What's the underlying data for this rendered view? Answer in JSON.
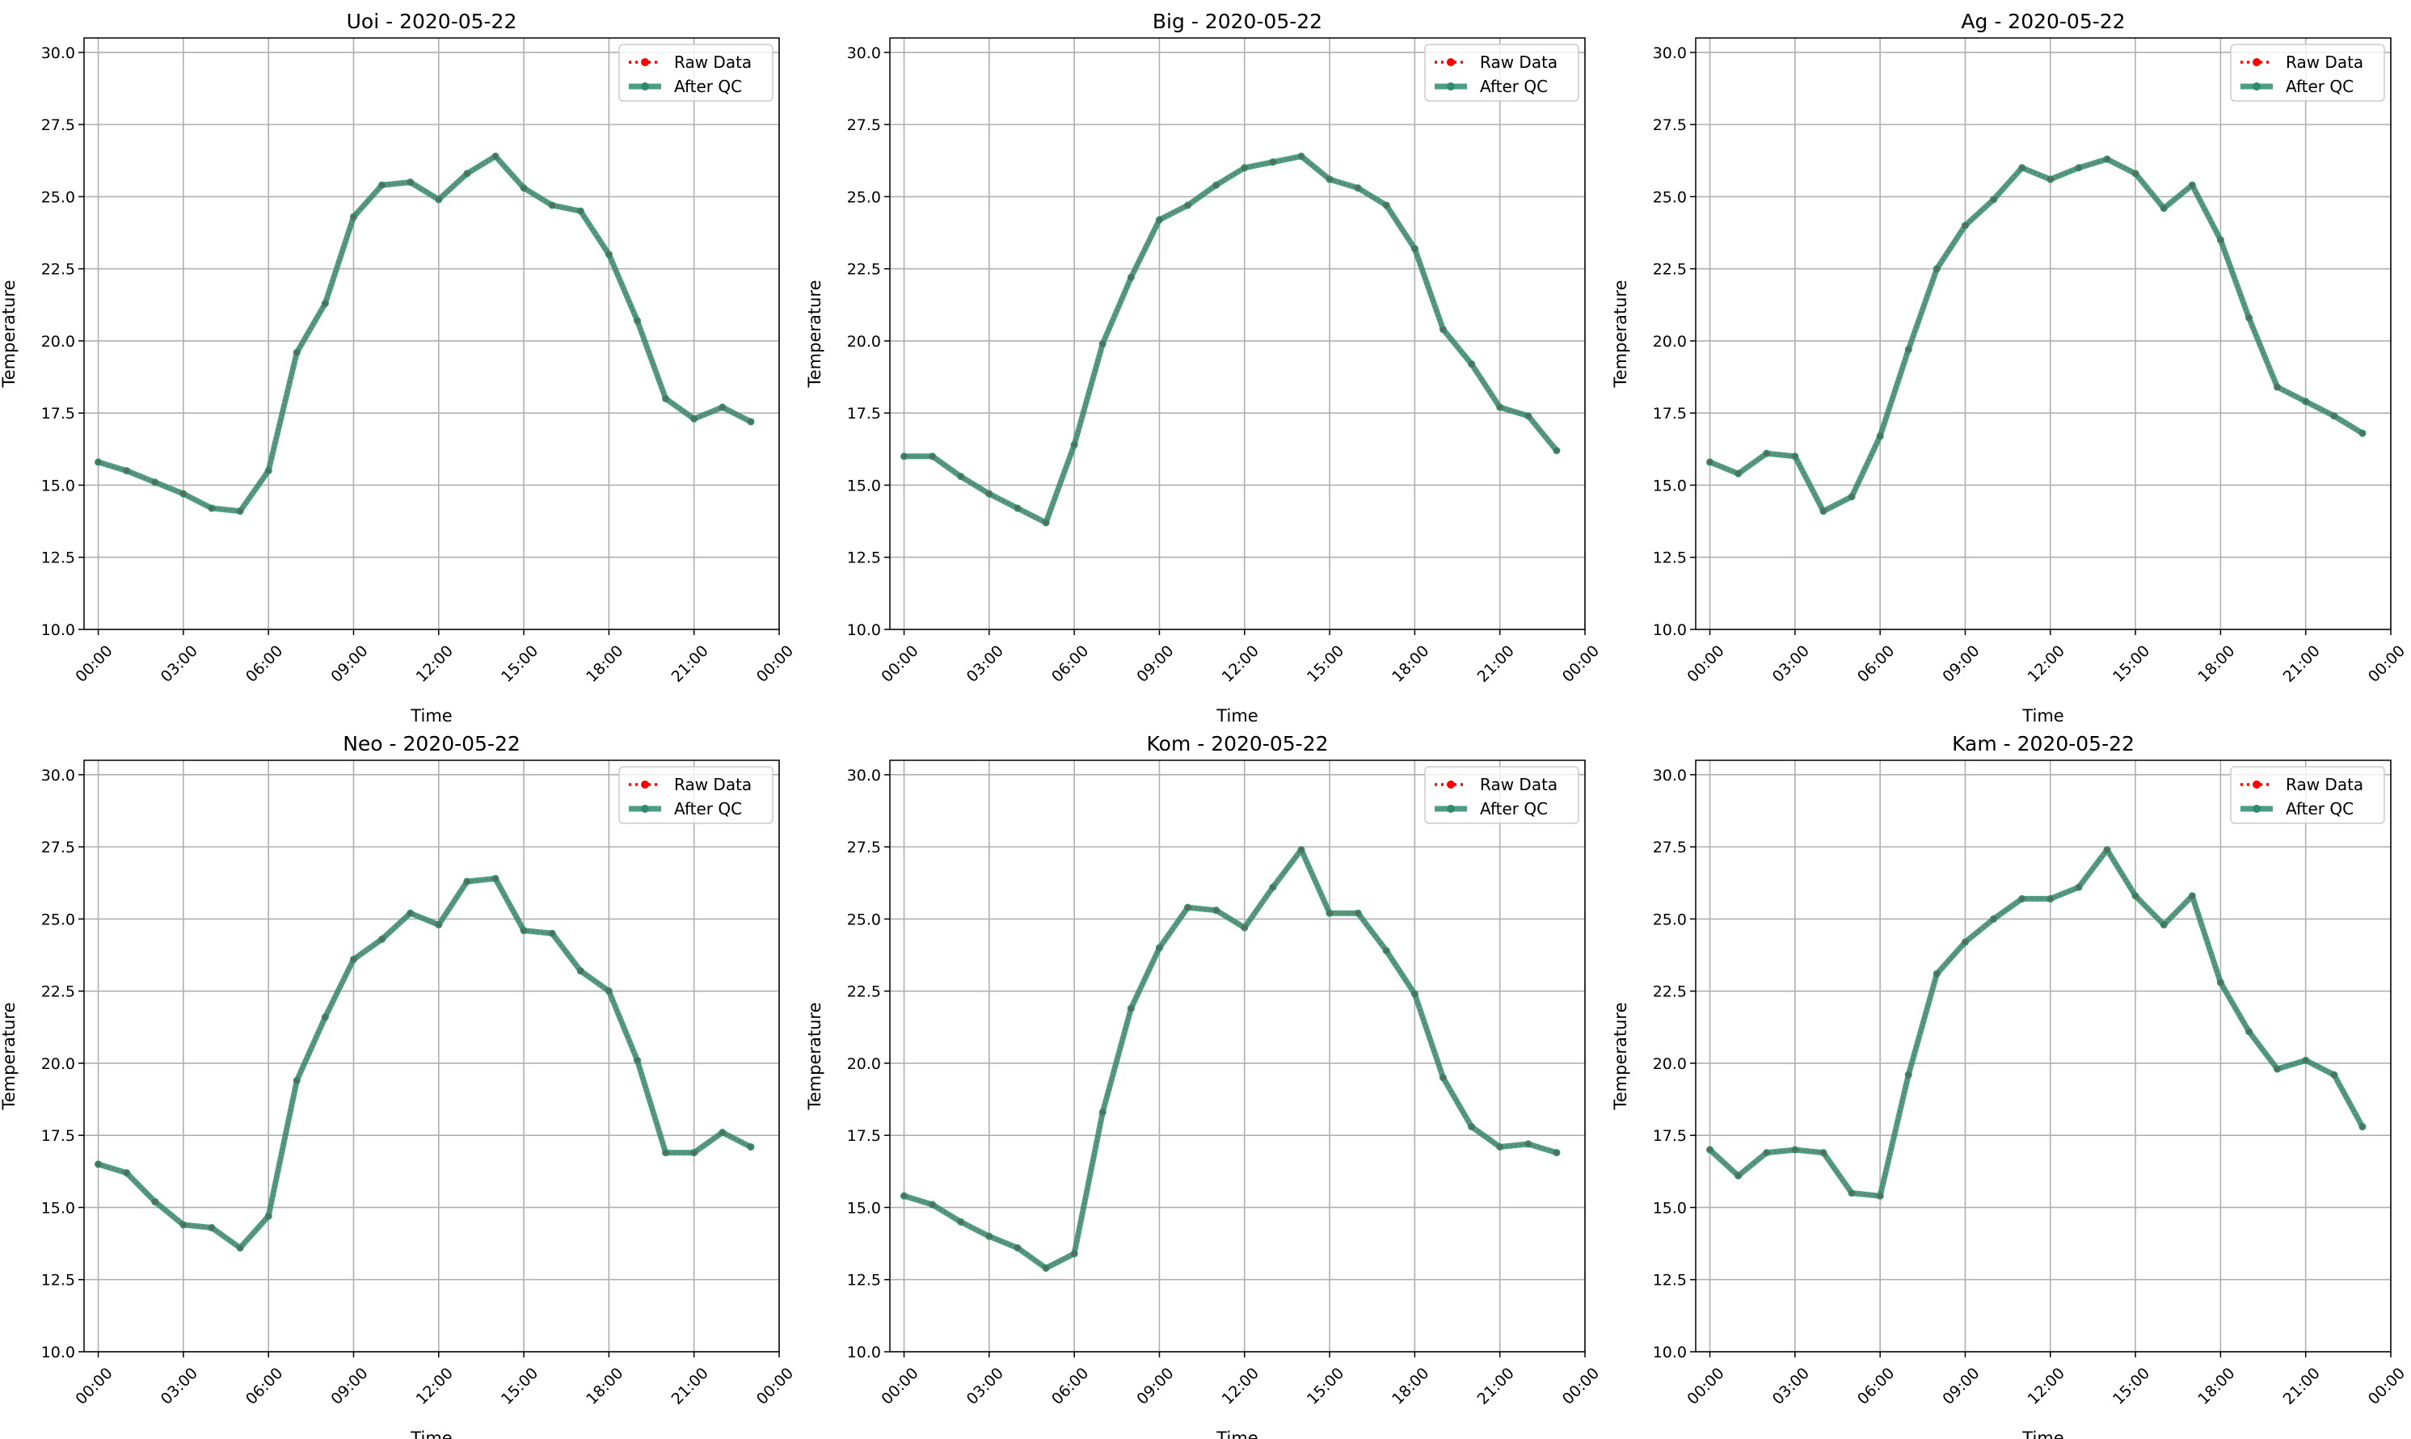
{
  "legend": {
    "raw_label": "Raw Data",
    "qc_label": "After QC"
  },
  "colors": {
    "raw": "#ff0000",
    "qc": "#2e8b6e",
    "grid": "#b0b0b0",
    "axes": "#000000"
  },
  "chart_data": [
    {
      "type": "line",
      "title": "Uoi - 2020-05-22",
      "xlabel": "Time",
      "ylabel": "Temperature",
      "xlim_hours": [
        -0.5,
        24.0
      ],
      "ylim": [
        10.0,
        30.5
      ],
      "x_ticks": [
        "00:00",
        "03:00",
        "06:00",
        "09:00",
        "12:00",
        "15:00",
        "18:00",
        "21:00",
        "00:00"
      ],
      "y_ticks": [
        "10.0",
        "12.5",
        "15.0",
        "17.5",
        "20.0",
        "22.5",
        "25.0",
        "27.5",
        "30.0"
      ],
      "grid": true,
      "legend_position": "top-right",
      "x": [
        "00:00",
        "01:00",
        "02:00",
        "03:00",
        "04:00",
        "05:00",
        "06:00",
        "07:00",
        "08:00",
        "09:00",
        "10:00",
        "11:00",
        "12:00",
        "13:00",
        "14:00",
        "15:00",
        "16:00",
        "17:00",
        "18:00",
        "19:00",
        "20:00",
        "21:00",
        "22:00",
        "23:00"
      ],
      "series": [
        {
          "name": "Raw Data",
          "values": [
            15.8,
            15.5,
            15.1,
            14.7,
            14.2,
            14.1,
            15.5,
            19.6,
            21.3,
            24.3,
            25.4,
            25.5,
            24.9,
            25.8,
            26.4,
            25.3,
            24.7,
            24.5,
            23.0,
            20.7,
            18.0,
            17.3,
            17.7,
            17.2
          ]
        },
        {
          "name": "After QC",
          "values": [
            15.8,
            15.5,
            15.1,
            14.7,
            14.2,
            14.1,
            15.5,
            19.6,
            21.3,
            24.3,
            25.4,
            25.5,
            24.9,
            25.8,
            26.4,
            25.3,
            24.7,
            24.5,
            23.0,
            20.7,
            18.0,
            17.3,
            17.7,
            17.2
          ]
        }
      ]
    },
    {
      "type": "line",
      "title": "Big - 2020-05-22",
      "xlabel": "Time",
      "ylabel": "Temperature",
      "xlim_hours": [
        -0.5,
        24.0
      ],
      "ylim": [
        10.0,
        30.5
      ],
      "x_ticks": [
        "00:00",
        "03:00",
        "06:00",
        "09:00",
        "12:00",
        "15:00",
        "18:00",
        "21:00",
        "00:00"
      ],
      "y_ticks": [
        "10.0",
        "12.5",
        "15.0",
        "17.5",
        "20.0",
        "22.5",
        "25.0",
        "27.5",
        "30.0"
      ],
      "grid": true,
      "legend_position": "top-right",
      "x": [
        "00:00",
        "01:00",
        "02:00",
        "03:00",
        "04:00",
        "05:00",
        "06:00",
        "07:00",
        "08:00",
        "09:00",
        "10:00",
        "11:00",
        "12:00",
        "13:00",
        "14:00",
        "15:00",
        "16:00",
        "17:00",
        "18:00",
        "19:00",
        "20:00",
        "21:00",
        "22:00",
        "23:00"
      ],
      "series": [
        {
          "name": "Raw Data",
          "values": [
            16.0,
            16.0,
            15.3,
            14.7,
            14.2,
            13.7,
            16.4,
            19.9,
            22.2,
            24.2,
            24.7,
            25.4,
            26.0,
            26.2,
            26.4,
            25.6,
            25.3,
            24.7,
            23.2,
            20.4,
            19.2,
            17.7,
            17.4,
            16.2
          ]
        },
        {
          "name": "After QC",
          "values": [
            16.0,
            16.0,
            15.3,
            14.7,
            14.2,
            13.7,
            16.4,
            19.9,
            22.2,
            24.2,
            24.7,
            25.4,
            26.0,
            26.2,
            26.4,
            25.6,
            25.3,
            24.7,
            23.2,
            20.4,
            19.2,
            17.7,
            17.4,
            16.2
          ]
        }
      ]
    },
    {
      "type": "line",
      "title": "Ag - 2020-05-22",
      "xlabel": "Time",
      "ylabel": "Temperature",
      "xlim_hours": [
        -0.5,
        24.0
      ],
      "ylim": [
        10.0,
        30.5
      ],
      "x_ticks": [
        "00:00",
        "03:00",
        "06:00",
        "09:00",
        "12:00",
        "15:00",
        "18:00",
        "21:00",
        "00:00"
      ],
      "y_ticks": [
        "10.0",
        "12.5",
        "15.0",
        "17.5",
        "20.0",
        "22.5",
        "25.0",
        "27.5",
        "30.0"
      ],
      "grid": true,
      "legend_position": "top-right",
      "x": [
        "00:00",
        "01:00",
        "02:00",
        "03:00",
        "04:00",
        "05:00",
        "06:00",
        "07:00",
        "08:00",
        "09:00",
        "10:00",
        "11:00",
        "12:00",
        "13:00",
        "14:00",
        "15:00",
        "16:00",
        "17:00",
        "18:00",
        "19:00",
        "20:00",
        "21:00",
        "22:00",
        "23:00"
      ],
      "series": [
        {
          "name": "Raw Data",
          "values": [
            15.8,
            15.4,
            16.1,
            16.0,
            14.1,
            14.6,
            16.7,
            19.7,
            22.5,
            24.0,
            24.9,
            26.0,
            25.6,
            26.0,
            26.3,
            25.8,
            24.6,
            25.4,
            23.5,
            20.8,
            18.4,
            17.9,
            17.4,
            16.8
          ]
        },
        {
          "name": "After QC",
          "values": [
            15.8,
            15.4,
            16.1,
            16.0,
            14.1,
            14.6,
            16.7,
            19.7,
            22.5,
            24.0,
            24.9,
            26.0,
            25.6,
            26.0,
            26.3,
            25.8,
            24.6,
            25.4,
            23.5,
            20.8,
            18.4,
            17.9,
            17.4,
            16.8
          ]
        }
      ]
    },
    {
      "type": "line",
      "title": "Neo - 2020-05-22",
      "xlabel": "Time",
      "ylabel": "Temperature",
      "xlim_hours": [
        -0.5,
        24.0
      ],
      "ylim": [
        10.0,
        30.5
      ],
      "x_ticks": [
        "00:00",
        "03:00",
        "06:00",
        "09:00",
        "12:00",
        "15:00",
        "18:00",
        "21:00",
        "00:00"
      ],
      "y_ticks": [
        "10.0",
        "12.5",
        "15.0",
        "17.5",
        "20.0",
        "22.5",
        "25.0",
        "27.5",
        "30.0"
      ],
      "grid": true,
      "legend_position": "top-right",
      "x": [
        "00:00",
        "01:00",
        "02:00",
        "03:00",
        "04:00",
        "05:00",
        "06:00",
        "07:00",
        "08:00",
        "09:00",
        "10:00",
        "11:00",
        "12:00",
        "13:00",
        "14:00",
        "15:00",
        "16:00",
        "17:00",
        "18:00",
        "19:00",
        "20:00",
        "21:00",
        "22:00",
        "23:00"
      ],
      "series": [
        {
          "name": "Raw Data",
          "values": [
            16.5,
            16.2,
            15.2,
            14.4,
            14.3,
            13.6,
            14.7,
            19.4,
            21.6,
            23.6,
            24.3,
            25.2,
            24.8,
            26.3,
            26.4,
            24.6,
            24.5,
            23.2,
            22.5,
            20.1,
            16.9,
            16.9,
            17.6,
            17.1
          ]
        },
        {
          "name": "After QC",
          "values": [
            16.5,
            16.2,
            15.2,
            14.4,
            14.3,
            13.6,
            14.7,
            19.4,
            21.6,
            23.6,
            24.3,
            25.2,
            24.8,
            26.3,
            26.4,
            24.6,
            24.5,
            23.2,
            22.5,
            20.1,
            16.9,
            16.9,
            17.6,
            17.1
          ]
        }
      ]
    },
    {
      "type": "line",
      "title": "Kom - 2020-05-22",
      "xlabel": "Time",
      "ylabel": "Temperature",
      "xlim_hours": [
        -0.5,
        24.0
      ],
      "ylim": [
        10.0,
        30.5
      ],
      "x_ticks": [
        "00:00",
        "03:00",
        "06:00",
        "09:00",
        "12:00",
        "15:00",
        "18:00",
        "21:00",
        "00:00"
      ],
      "y_ticks": [
        "10.0",
        "12.5",
        "15.0",
        "17.5",
        "20.0",
        "22.5",
        "25.0",
        "27.5",
        "30.0"
      ],
      "grid": true,
      "legend_position": "top-right",
      "x": [
        "00:00",
        "01:00",
        "02:00",
        "03:00",
        "04:00",
        "05:00",
        "06:00",
        "07:00",
        "08:00",
        "09:00",
        "10:00",
        "11:00",
        "12:00",
        "13:00",
        "14:00",
        "15:00",
        "16:00",
        "17:00",
        "18:00",
        "19:00",
        "20:00",
        "21:00",
        "22:00",
        "23:00"
      ],
      "series": [
        {
          "name": "Raw Data",
          "values": [
            15.4,
            15.1,
            14.5,
            14.0,
            13.6,
            12.9,
            13.4,
            18.3,
            21.9,
            24.0,
            25.4,
            25.3,
            24.7,
            26.1,
            27.4,
            25.2,
            25.2,
            23.9,
            22.4,
            19.5,
            17.8,
            17.1,
            17.2,
            16.9
          ]
        },
        {
          "name": "After QC",
          "values": [
            15.4,
            15.1,
            14.5,
            14.0,
            13.6,
            12.9,
            13.4,
            18.3,
            21.9,
            24.0,
            25.4,
            25.3,
            24.7,
            26.1,
            27.4,
            25.2,
            25.2,
            23.9,
            22.4,
            19.5,
            17.8,
            17.1,
            17.2,
            16.9
          ]
        }
      ]
    },
    {
      "type": "line",
      "title": "Kam - 2020-05-22",
      "xlabel": "Time",
      "ylabel": "Temperature",
      "xlim_hours": [
        -0.5,
        24.0
      ],
      "ylim": [
        10.0,
        30.5
      ],
      "x_ticks": [
        "00:00",
        "03:00",
        "06:00",
        "09:00",
        "12:00",
        "15:00",
        "18:00",
        "21:00",
        "00:00"
      ],
      "y_ticks": [
        "10.0",
        "12.5",
        "15.0",
        "17.5",
        "20.0",
        "22.5",
        "25.0",
        "27.5",
        "30.0"
      ],
      "grid": true,
      "legend_position": "top-right",
      "x": [
        "00:00",
        "01:00",
        "02:00",
        "03:00",
        "04:00",
        "05:00",
        "06:00",
        "07:00",
        "08:00",
        "09:00",
        "10:00",
        "11:00",
        "12:00",
        "13:00",
        "14:00",
        "15:00",
        "16:00",
        "17:00",
        "18:00",
        "19:00",
        "20:00",
        "21:00",
        "22:00",
        "23:00"
      ],
      "series": [
        {
          "name": "Raw Data",
          "values": [
            17.0,
            16.1,
            16.9,
            17.0,
            16.9,
            15.5,
            15.4,
            19.6,
            23.1,
            24.2,
            25.0,
            25.7,
            25.7,
            26.1,
            27.4,
            25.8,
            24.8,
            25.8,
            22.8,
            21.1,
            19.8,
            20.1,
            19.6,
            17.8
          ]
        },
        {
          "name": "After QC",
          "values": [
            17.0,
            16.1,
            16.9,
            17.0,
            16.9,
            15.5,
            15.4,
            19.6,
            23.1,
            24.2,
            25.0,
            25.7,
            25.7,
            26.1,
            27.4,
            25.8,
            24.8,
            25.8,
            22.8,
            21.1,
            19.8,
            20.1,
            19.6,
            17.8
          ]
        }
      ]
    }
  ]
}
